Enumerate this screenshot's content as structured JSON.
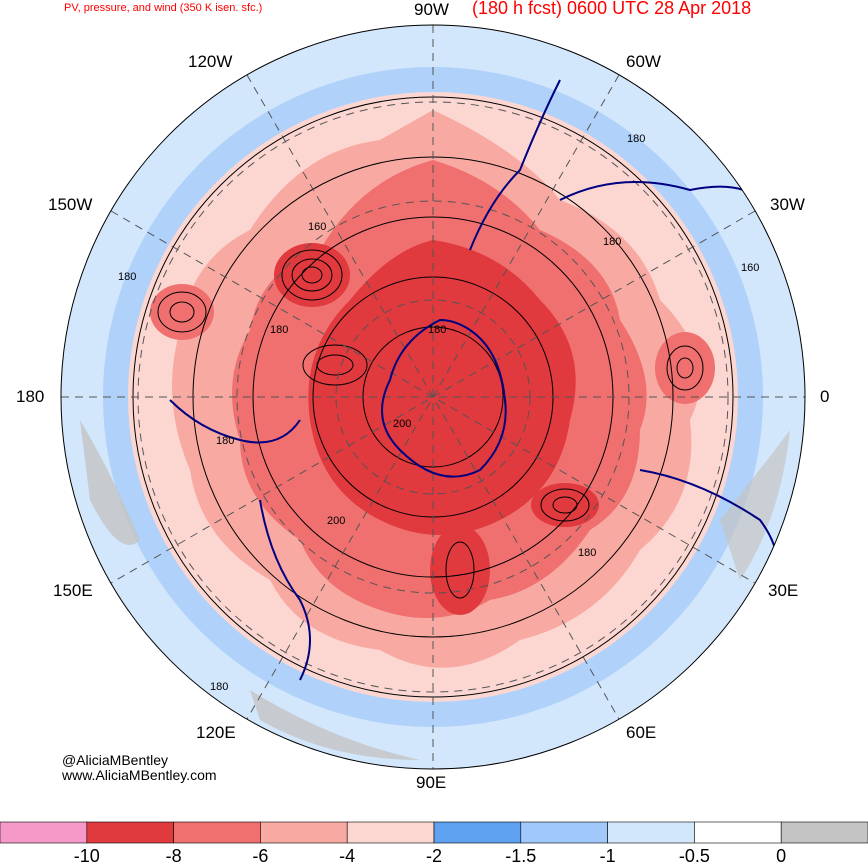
{
  "header": {
    "left": "PV, pressure, and wind (350 K isen. sfc.)",
    "right": "(180 h fcst) 0600 UTC 28 Apr 2018"
  },
  "lon_labels": {
    "w90": "90W",
    "w60": "60W",
    "w30": "30W",
    "zero": "0",
    "e30": "30E",
    "e60": "60E",
    "e90": "90E",
    "e120": "120E",
    "e150": "150E",
    "d180": "180",
    "w150": "150W",
    "w120": "120W"
  },
  "contour_labels": [
    "180",
    "160",
    "180",
    "160",
    "180",
    "180",
    "180",
    "200",
    "200",
    "180",
    "180",
    "180"
  ],
  "credits": {
    "twitter": "@AliciaMBentley",
    "web": "www.AliciaMBentley.com"
  },
  "colorbar": {
    "colors": [
      "#f59ac8",
      "#e0393e",
      "#f07070",
      "#f8aaa2",
      "#fcd7d2",
      "#5ea1f0",
      "#a0c8fa",
      "#d2e6fc",
      "#ffffff",
      "#c4c4c4"
    ],
    "labels": [
      "-10",
      "-8",
      "-6",
      "-4",
      "-2",
      "-1.5",
      "-1",
      "-0.5",
      "0"
    ]
  }
}
